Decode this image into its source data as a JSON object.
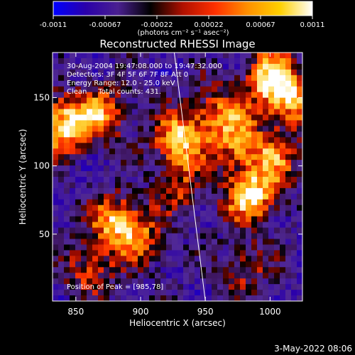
{
  "chart_data": {
    "type": "heatmap",
    "title": "Reconstructed RHESSI Image",
    "xlabel": "Heliocentric X (arcsec)",
    "ylabel": "Heliocentric Y (arcsec)",
    "xlim": [
      832,
      1025
    ],
    "ylim": [
      1,
      183
    ],
    "x_ticks": [
      850,
      900,
      950,
      1000
    ],
    "y_ticks": [
      50,
      100,
      150
    ],
    "colorbar": {
      "range": [
        -0.0011,
        0.0011
      ],
      "tick_labels": [
        "-0.0011",
        "-0.00067",
        "-0.00022",
        "0.00022",
        "0.00067",
        "0.0011"
      ],
      "units": "(photons cm⁻² s⁻¹ asec⁻²)",
      "colors": [
        "#0000ff",
        "#2a00aa",
        "#4a2090",
        "#000000",
        "#b01000",
        "#ff3000",
        "#ff9000",
        "#ffd000",
        "#ffffff"
      ]
    },
    "annotations": [
      "30-Aug-2004 19:47:08.000 to 19:47:32.000",
      "Detectors: 3F 4F 5F 6F 7F 8F Att 0",
      "Energy Range: 12.0 - 25.0 keV",
      "Clean     Total counts: 431."
    ],
    "peak_label": "Position of Peak = [985,78]",
    "peak": [
      985,
      78
    ],
    "limb_line": [
      [
        926,
        183
      ],
      [
        950,
        1
      ]
    ],
    "hotspots": [
      {
        "x": 840,
        "y": 130,
        "amp": 1.0
      },
      {
        "x": 870,
        "y": 138,
        "amp": 0.75
      },
      {
        "x": 930,
        "y": 120,
        "amp": 0.95
      },
      {
        "x": 985,
        "y": 78,
        "amp": 1.0
      },
      {
        "x": 1000,
        "y": 165,
        "amp": 0.85
      },
      {
        "x": 1015,
        "y": 150,
        "amp": 0.8
      },
      {
        "x": 880,
        "y": 60,
        "amp": 0.8
      },
      {
        "x": 900,
        "y": 45,
        "amp": 0.55
      },
      {
        "x": 975,
        "y": 118,
        "amp": 0.7
      },
      {
        "x": 960,
        "y": 140,
        "amp": 0.55
      },
      {
        "x": 1005,
        "y": 105,
        "amp": 0.6
      },
      {
        "x": 860,
        "y": 25,
        "amp": 0.5
      },
      {
        "x": 980,
        "y": 25,
        "amp": 0.45
      },
      {
        "x": 930,
        "y": 85,
        "amp": 0.45
      }
    ]
  },
  "footer": {
    "date": "3-May-2022 08:06"
  }
}
